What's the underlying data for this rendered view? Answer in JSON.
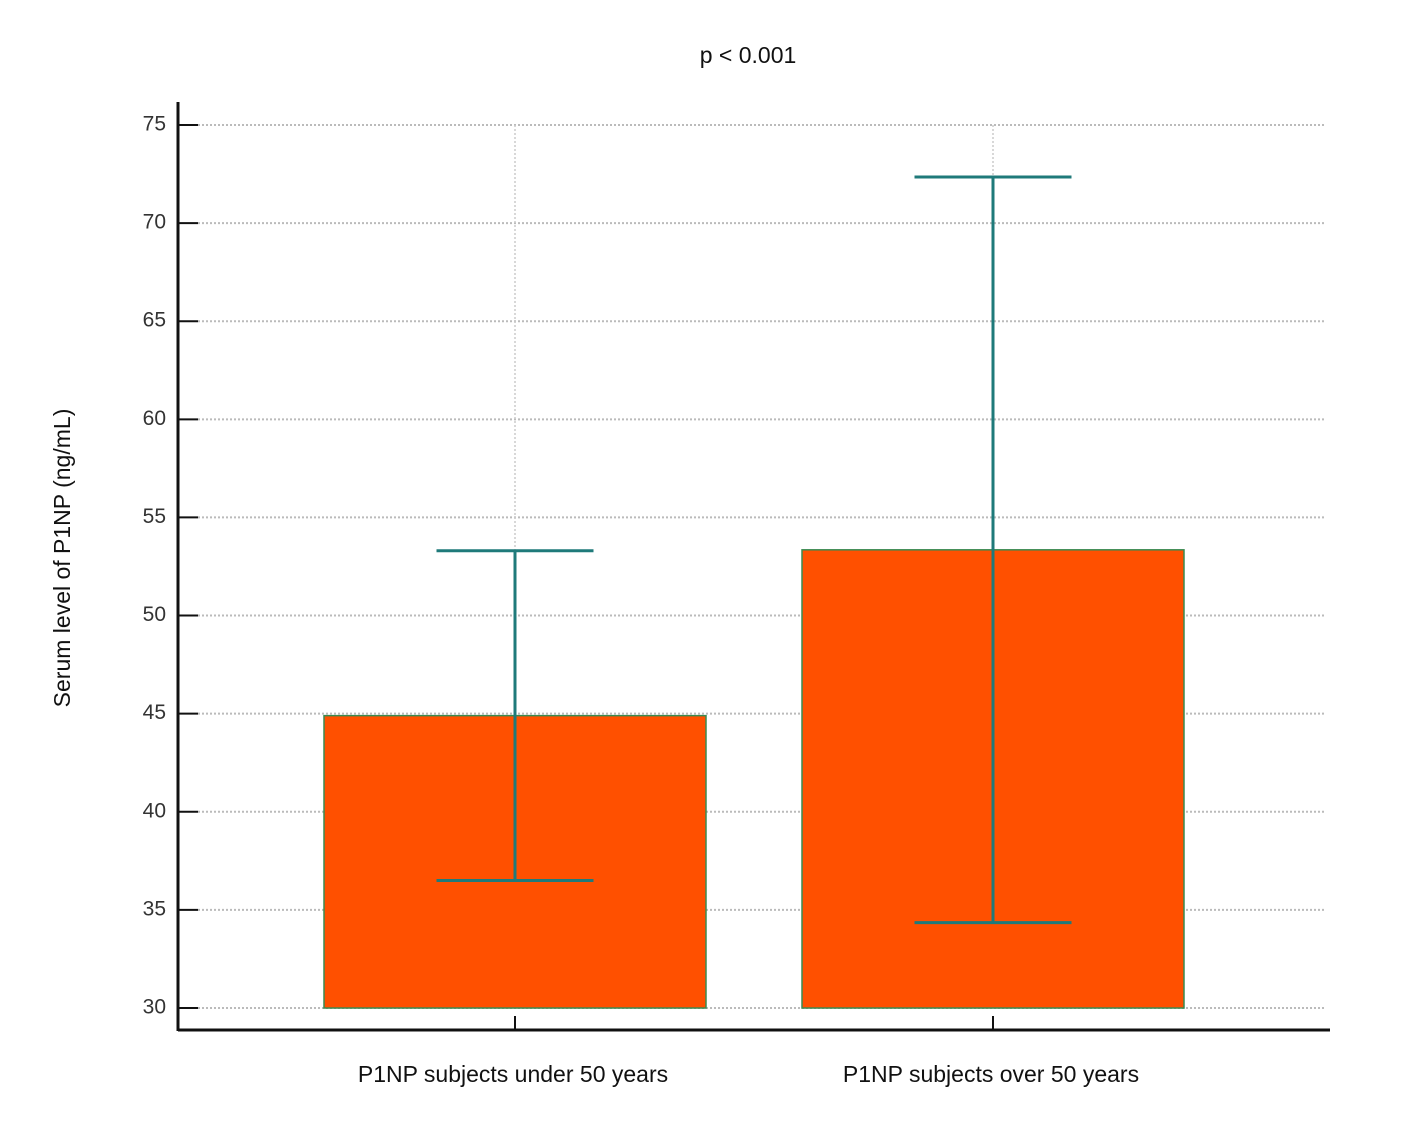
{
  "chart_data": {
    "type": "bar",
    "title": "p < 0.001",
    "y_label": "Serum level of P1NP (ng/mL)",
    "categories": [
      "P1NP subjects under 50 years",
      "P1NP subjects over 50 years"
    ],
    "values": [
      44.9,
      53.35
    ],
    "errors": [
      8.4,
      19.0
    ],
    "color": "#ff5000",
    "error_color": "#1f7a7a",
    "ylim": [
      28.88,
      76.17
    ],
    "yticks": [
      30,
      35,
      40,
      45,
      50,
      55,
      60,
      65,
      70,
      75
    ],
    "grid": true
  }
}
